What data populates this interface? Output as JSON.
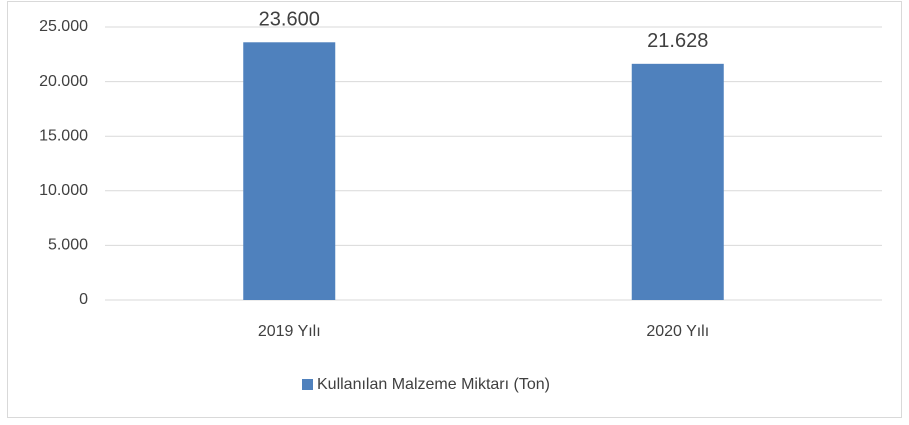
{
  "chart_data": {
    "type": "bar",
    "categories": [
      "2019 Yılı",
      "2020 Yılı"
    ],
    "series": [
      {
        "name": "Kullanılan Malzeme Miktarı (Ton)",
        "color": "#4f81bd",
        "values": [
          23600,
          21628
        ],
        "value_labels": [
          "23.600",
          "21.628"
        ]
      }
    ],
    "ylim": [
      0,
      25000
    ],
    "yticks": [
      0,
      {
        "value": 5000,
        "label": "5.000"
      },
      {
        "value": 10000,
        "label": "10.000"
      },
      {
        "value": 15000,
        "label": "15.000"
      },
      {
        "value": 20000,
        "label": "20.000"
      },
      {
        "value": 25000,
        "label": "25.000"
      }
    ],
    "grid": true,
    "legend": "bottom"
  }
}
